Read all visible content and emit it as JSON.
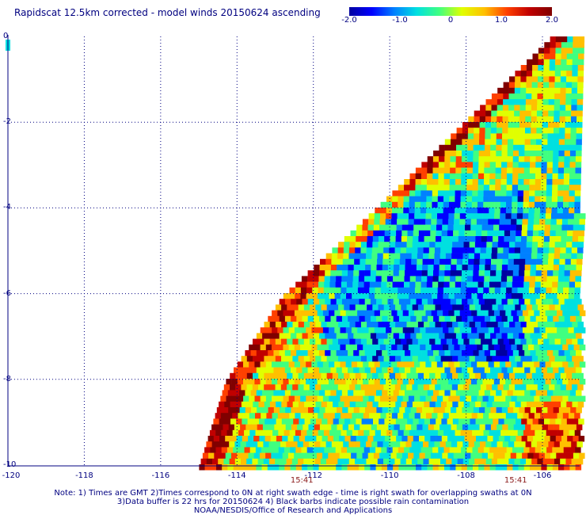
{
  "title": "Rapidscat 12.5km corrected - model winds 20150624 ascending",
  "colorbar": {
    "tick_labels": [
      "-2.0",
      "-1.0",
      "0",
      "1.0",
      "2.0"
    ],
    "range": [
      -2.0,
      2.0
    ],
    "colors": [
      "#0000a0",
      "#0000ff",
      "#0080ff",
      "#00e0e0",
      "#40ff80",
      "#e0ff00",
      "#ffc000",
      "#ff4000",
      "#c00000",
      "#800000"
    ]
  },
  "map": {
    "lon_range": [
      -120,
      -105
    ],
    "lat_range": [
      -10,
      0
    ],
    "x_ticks": [
      "-120",
      "-118",
      "-116",
      "-114",
      "-112",
      "-110",
      "-108",
      "-106"
    ],
    "y_ticks": [
      "0",
      "-2",
      "-4",
      "-6",
      "-8",
      "-10"
    ],
    "swath_left_edge": [
      [
        -105.8,
        0
      ],
      [
        -108.1,
        -2
      ],
      [
        -110.4,
        -4
      ],
      [
        -112.8,
        -6
      ],
      [
        -114.3,
        -8
      ],
      [
        -115.0,
        -10
      ]
    ],
    "gridlines": "dotted",
    "field_description_colors": {
      "background": "#ffffff",
      "grid": "#000080"
    }
  },
  "times": [
    {
      "label": "15:41",
      "lon": -112.3
    },
    {
      "label": "15:41",
      "lon": -106.7
    }
  ],
  "notes": [
    "Note: 1) Times are GMT 2)Times correspond to 0N at right swath edge - time is right swath for overlapping swaths at 0N",
    "3)Data buffer is 22 hrs for 20150624 4) Black barbs indicate possible rain contamination",
    "NOAA/NESDIS/Office of Research and Applications"
  ]
}
